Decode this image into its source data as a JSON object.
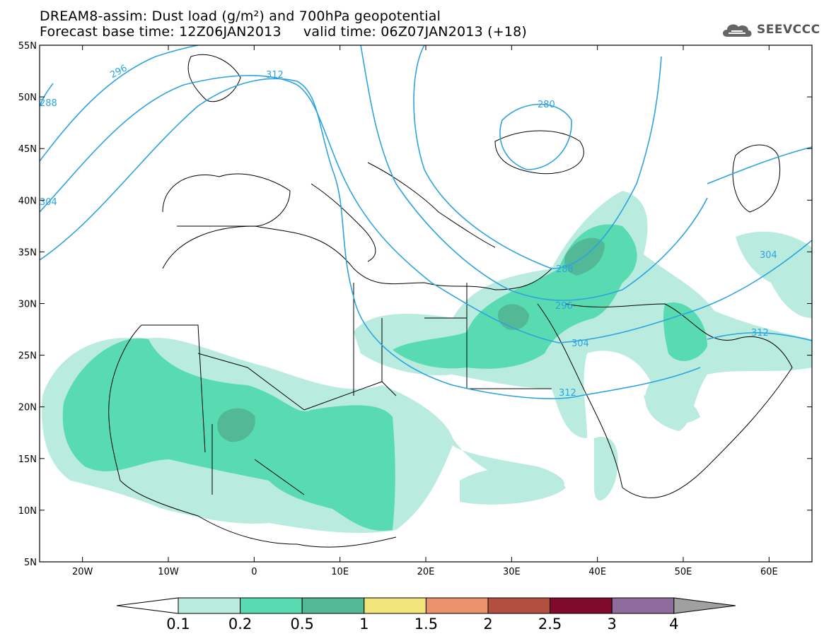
{
  "header": {
    "title_line1": "DREAM8-assim: Dust load (g/m²) and 700hPa geopotential",
    "title_line2": "Forecast base time: 12Z06JAN2013     valid time: 06Z07JAN2013 (+18)",
    "logo_text": "SEEVCCC"
  },
  "map": {
    "lon_range": [
      -25,
      65
    ],
    "lat_range": [
      5,
      55
    ],
    "lat_ticks": [
      "55N",
      "50N",
      "45N",
      "40N",
      "35N",
      "30N",
      "25N",
      "20N",
      "15N",
      "10N",
      "5N"
    ],
    "lon_ticks": [
      "20W",
      "10W",
      "0",
      "10E",
      "20E",
      "30E",
      "40E",
      "50E",
      "60E"
    ],
    "contour_labels": [
      "296",
      "312",
      "288",
      "304",
      "280",
      "288",
      "296",
      "304",
      "312",
      "304",
      "312"
    ]
  },
  "colorbar": {
    "labels": [
      "0.1",
      "0.2",
      "0.5",
      "1",
      "1.5",
      "2",
      "2.5",
      "3",
      "4"
    ],
    "colors": [
      "#b9ecdf",
      "#58dbb0",
      "#53b896",
      "#f2e57a",
      "#ec926b",
      "#b24f40",
      "#800a2c",
      "#8f6c9e",
      "#a0a0a0"
    ]
  }
}
